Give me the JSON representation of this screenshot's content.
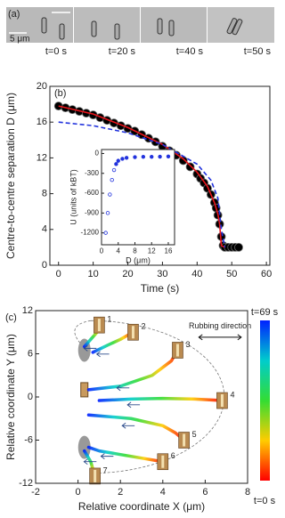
{
  "panel_a": {
    "label": "(a)",
    "scale_bar": "5 μm",
    "frames": [
      "t=0 s",
      "t=20 s",
      "t=40 s",
      "t=50 s"
    ]
  },
  "chart_data": [
    {
      "type": "scatter",
      "panel_label": "(b)",
      "xlabel": "Time (s)",
      "ylabel": "Centre-to-centre separation D (μm)",
      "xlim": [
        -2.5,
        61
      ],
      "ylim": [
        0,
        20
      ],
      "xticks": [
        0,
        10,
        20,
        30,
        40,
        50,
        60
      ],
      "yticks": [
        0,
        4,
        8,
        12,
        16,
        20
      ],
      "series": [
        {
          "color": "#000000",
          "x": [
            0,
            2,
            4,
            6,
            8,
            10,
            12,
            14,
            16,
            18,
            20,
            22,
            24,
            26,
            28,
            30,
            32,
            34,
            36,
            38,
            40,
            41,
            42,
            43,
            44,
            45,
            45.5,
            46,
            46.5,
            47,
            47.5,
            48,
            49,
            50,
            51,
            52
          ],
          "values": [
            17.8,
            17.6,
            17.4,
            17.2,
            17.0,
            16.8,
            16.5,
            16.2,
            15.9,
            15.6,
            15.3,
            15.0,
            14.6,
            14.2,
            13.8,
            13.3,
            12.8,
            12.3,
            11.7,
            11.0,
            10.2,
            9.7,
            9.2,
            8.6,
            7.9,
            7.0,
            6.4,
            5.6,
            4.6,
            3.2,
            2.2,
            2.0,
            2.0,
            2.0,
            2.0,
            2.0
          ]
        },
        {
          "color": "#e8141a",
          "style": "line",
          "x": [
            0,
            10,
            20,
            30,
            36,
            40,
            43,
            45,
            46,
            46.5,
            47,
            48
          ],
          "values": [
            17.8,
            16.9,
            15.4,
            13.5,
            11.9,
            10.4,
            8.8,
            7.0,
            5.7,
            4.6,
            2.2,
            2.0
          ]
        },
        {
          "color": "#2233dd",
          "style": "dashed",
          "x": [
            0,
            10,
            20,
            30,
            40,
            44,
            46,
            47,
            48
          ],
          "values": [
            16.0,
            15.6,
            14.8,
            13.5,
            11.3,
            9.5,
            7.5,
            4.0,
            2.0
          ]
        }
      ]
    },
    {
      "type": "scatter",
      "xlabel": "D (μm)",
      "ylabel": "U (units of kBT)",
      "xlim": [
        0,
        17.5
      ],
      "ylim": [
        -1380,
        60
      ],
      "xticks": [
        0,
        4,
        8,
        12,
        16
      ],
      "yticks": [
        0,
        -300,
        -600,
        -900,
        -1200
      ],
      "series": [
        {
          "color": "#2233dd",
          "x": [
            1,
            1.5,
            2,
            2.5,
            3,
            3.5,
            4,
            5,
            6,
            8,
            10,
            12,
            14,
            16
          ],
          "values": [
            -1200,
            -900,
            -620,
            -400,
            -250,
            -160,
            -110,
            -80,
            -65,
            -55,
            -50,
            -50,
            -48,
            -45
          ]
        }
      ]
    },
    {
      "type": "trajectory",
      "panel_label": "(c)",
      "xlabel": "Relative coordinate X (μm)",
      "ylabel": "Relative coordinate Y (μm)",
      "xlim": [
        -2,
        8
      ],
      "ylim": [
        -12,
        12
      ],
      "xticks": [
        -2,
        0,
        2,
        4,
        6,
        8
      ],
      "yticks": [
        -12,
        -6,
        0,
        6,
        12
      ],
      "annotation": "Rubbing direction",
      "colorbar_labels": [
        "t=69 s",
        "t=0 s"
      ],
      "series": [
        {
          "label": "1",
          "x": [
            1.0,
            0.9,
            0.6,
            0.3
          ],
          "values": [
            10,
            9,
            8,
            7
          ]
        },
        {
          "label": "2",
          "x": [
            2.6,
            2.0,
            1.4,
            0.7
          ],
          "values": [
            9,
            8,
            7.2,
            6.2
          ]
        },
        {
          "label": "3",
          "x": [
            4.7,
            4.4,
            3.5,
            2.0,
            0.5
          ],
          "values": [
            6.5,
            5,
            3,
            1.5,
            1
          ]
        },
        {
          "label": "4",
          "x": [
            6.8,
            5.5,
            4,
            2.5,
            1
          ],
          "values": [
            -0.5,
            -0.3,
            -0.2,
            -0.3,
            -0.5
          ]
        },
        {
          "label": "5",
          "x": [
            5,
            4.6,
            4,
            2.5,
            0.5
          ],
          "values": [
            -6,
            -5,
            -4,
            -3,
            -2.5
          ]
        },
        {
          "label": "6",
          "x": [
            4,
            3,
            2,
            1,
            0.5
          ],
          "values": [
            -9,
            -8.5,
            -8,
            -7.5,
            -7
          ]
        },
        {
          "label": "7",
          "x": [
            0.8,
            0.6,
            0.3
          ],
          "values": [
            -11,
            -9,
            -7.5
          ]
        }
      ]
    }
  ]
}
